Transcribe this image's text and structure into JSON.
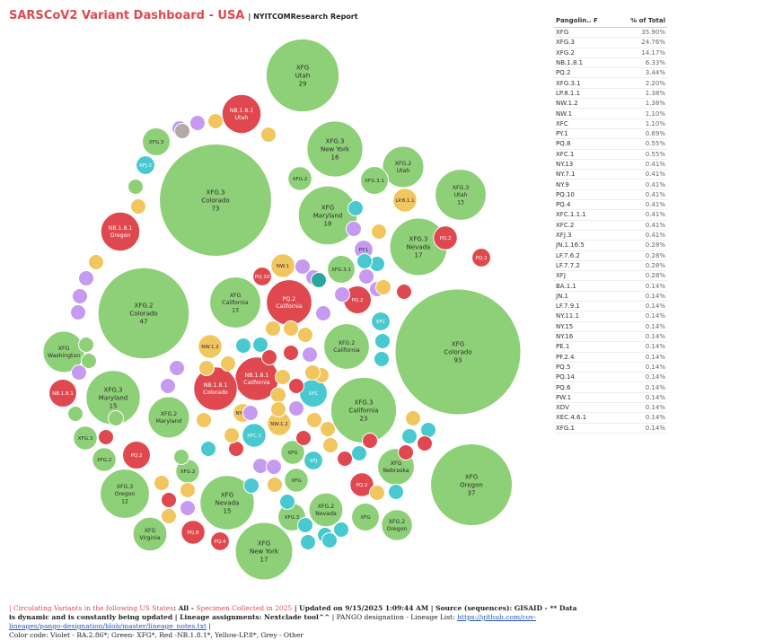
{
  "header": {
    "title": "SARSCoV2 Variant Dashboard - USA",
    "subtitle": "| NYITCOMResearch Report"
  },
  "colors": {
    "violet": "#c69af0",
    "green": "#8ed077",
    "red": "#e0484f",
    "yellow": "#f2c65f",
    "grey": "#b5a9a4",
    "cyan": "#48c9cf",
    "teal": "#2aa79b"
  },
  "table": {
    "col_lineage": "Pangolin.. F",
    "col_pct": "% of Total",
    "rows": [
      {
        "lineage": "XFG",
        "pct": "35.90%"
      },
      {
        "lineage": "XFG.3",
        "pct": "24.76%"
      },
      {
        "lineage": "XFG.2",
        "pct": "14.17%"
      },
      {
        "lineage": "NB.1.8.1",
        "pct": "6.33%"
      },
      {
        "lineage": "PQ.2",
        "pct": "3.44%"
      },
      {
        "lineage": "XFG.3.1",
        "pct": "2.20%"
      },
      {
        "lineage": "LP.8.1.1",
        "pct": "1.38%"
      },
      {
        "lineage": "NW.1.2",
        "pct": "1.38%"
      },
      {
        "lineage": "NW.1",
        "pct": "1.10%"
      },
      {
        "lineage": "XFC",
        "pct": "1.10%"
      },
      {
        "lineage": "PY.1",
        "pct": "0.69%"
      },
      {
        "lineage": "PQ.8",
        "pct": "0.55%"
      },
      {
        "lineage": "XFC.1",
        "pct": "0.55%"
      },
      {
        "lineage": "NY.13",
        "pct": "0.41%"
      },
      {
        "lineage": "NY.7.1",
        "pct": "0.41%"
      },
      {
        "lineage": "NY.9",
        "pct": "0.41%"
      },
      {
        "lineage": "PQ.10",
        "pct": "0.41%"
      },
      {
        "lineage": "PQ.4",
        "pct": "0.41%"
      },
      {
        "lineage": "XFC.1.1.1",
        "pct": "0.41%"
      },
      {
        "lineage": "XFC.2",
        "pct": "0.41%"
      },
      {
        "lineage": "XFJ.3",
        "pct": "0.41%"
      },
      {
        "lineage": "JN.1.16.5",
        "pct": "0.28%"
      },
      {
        "lineage": "LF.7.6.2",
        "pct": "0.28%"
      },
      {
        "lineage": "LF.7.7.2",
        "pct": "0.28%"
      },
      {
        "lineage": "XFJ",
        "pct": "0.28%"
      },
      {
        "lineage": "BA.1.1",
        "pct": "0.14%"
      },
      {
        "lineage": "JN.1",
        "pct": "0.14%"
      },
      {
        "lineage": "LF.7.9.1",
        "pct": "0.14%"
      },
      {
        "lineage": "NY.11.1",
        "pct": "0.14%"
      },
      {
        "lineage": "NY.15",
        "pct": "0.14%"
      },
      {
        "lineage": "NY.16",
        "pct": "0.14%"
      },
      {
        "lineage": "PE.1",
        "pct": "0.14%"
      },
      {
        "lineage": "PF.2.4",
        "pct": "0.14%"
      },
      {
        "lineage": "PQ.5",
        "pct": "0.14%"
      },
      {
        "lineage": "PQ.14",
        "pct": "0.14%"
      },
      {
        "lineage": "PQ.6",
        "pct": "0.14%"
      },
      {
        "lineage": "PW.1",
        "pct": "0.14%"
      },
      {
        "lineage": "XDV",
        "pct": "0.14%"
      },
      {
        "lineage": "XEC.4.6.1",
        "pct": "0.14%"
      },
      {
        "lineage": "XFG.1",
        "pct": "0.14%"
      }
    ]
  },
  "chart_data": {
    "type": "bubble",
    "title": "SARSCoV2 Variant Dashboard - USA",
    "color_legend": "Color code: Violet - BA.2.86*; Green- XFG*, Red -NB.1.8.1*, Yellow-LP.8*, Grey - Other",
    "bubbles": [
      {
        "lineage": "XFG",
        "state": "Colorado",
        "count": "93",
        "value": 93,
        "color": "green"
      },
      {
        "lineage": "XFG.3",
        "state": "Colorado",
        "count": "73",
        "value": 73,
        "color": "green"
      },
      {
        "lineage": "XFG.2",
        "state": "Colorado",
        "count": "47",
        "value": 47,
        "color": "green"
      },
      {
        "lineage": "XFG",
        "state": "Oregon",
        "count": "37",
        "value": 37,
        "color": "green"
      },
      {
        "lineage": "XFG",
        "state": "Utah",
        "count": "29",
        "value": 29,
        "color": "green"
      },
      {
        "lineage": "XFG.3",
        "state": "California",
        "count": "23",
        "value": 23,
        "color": "green"
      },
      {
        "lineage": "XFG",
        "state": "Maryland",
        "count": "18",
        "value": 18,
        "color": "green"
      },
      {
        "lineage": "XFG.3",
        "state": "Nevada",
        "count": "17",
        "value": 17,
        "color": "green"
      },
      {
        "lineage": "XFG",
        "state": "New York",
        "count": "17",
        "value": 17,
        "color": "green"
      },
      {
        "lineage": "XFG.3",
        "state": "New York",
        "count": "16",
        "value": 16,
        "color": "green"
      },
      {
        "lineage": "XFG.3",
        "state": "Maryland",
        "count": "15",
        "value": 15,
        "color": "green"
      },
      {
        "lineage": "XFG",
        "state": "Nevada",
        "count": "15",
        "value": 15,
        "color": "green"
      },
      {
        "lineage": "XFG",
        "state": "California",
        "count": "13",
        "value": 13,
        "color": "green"
      },
      {
        "lineage": "XFG.3",
        "state": "Utah",
        "count": "13",
        "value": 13,
        "color": "green"
      },
      {
        "lineage": "XFG.3",
        "state": "Oregon",
        "count": "12",
        "value": 12,
        "color": "green"
      },
      {
        "lineage": "XFG.2",
        "state": "California",
        "count": "",
        "value": 10,
        "color": "green"
      },
      {
        "lineage": "XFG.2",
        "state": "Utah",
        "count": "",
        "value": 8,
        "color": "green"
      },
      {
        "lineage": "XFG",
        "state": "Washington",
        "count": "",
        "value": 8,
        "color": "green"
      },
      {
        "lineage": "XFG.2",
        "state": "Maryland",
        "count": "",
        "value": 8,
        "color": "green"
      },
      {
        "lineage": "XFG",
        "state": "Nebraska",
        "count": "",
        "value": 6,
        "color": "green"
      },
      {
        "lineage": "XFG.2",
        "state": "Nevada",
        "count": "",
        "value": 5,
        "color": "green"
      },
      {
        "lineage": "XFG",
        "state": "Virginia",
        "count": "",
        "value": 5,
        "color": "green"
      },
      {
        "lineage": "XFG.2",
        "state": "Oregon",
        "count": "",
        "value": 4,
        "color": "green"
      },
      {
        "lineage": "XFG.3",
        "state": "",
        "count": "",
        "value": 3,
        "color": "green"
      },
      {
        "lineage": "XFG.3",
        "state": "",
        "count": "",
        "value": 2,
        "color": "green"
      },
      {
        "lineage": "XFG.2",
        "state": "",
        "count": "",
        "value": 2,
        "color": "green"
      },
      {
        "lineage": "XFG.2",
        "state": "",
        "count": "",
        "value": 2,
        "color": "green"
      },
      {
        "lineage": "XFG.2",
        "state": "",
        "count": "",
        "value": 2,
        "color": "green"
      },
      {
        "lineage": "XFG",
        "state": "",
        "count": "",
        "value": 3,
        "color": "green"
      },
      {
        "lineage": "XFG",
        "state": "",
        "count": "",
        "value": 2,
        "color": "green"
      },
      {
        "lineage": "XFG",
        "state": "",
        "count": "",
        "value": 2,
        "color": "green"
      },
      {
        "lineage": "XFG.3.1",
        "state": "",
        "count": "",
        "value": 3,
        "color": "green"
      },
      {
        "lineage": "XFG.3.1",
        "state": "",
        "count": "",
        "value": 3,
        "color": "green"
      },
      {
        "lineage": "XFG.3",
        "state": "",
        "count": "",
        "value": 3,
        "color": "green"
      },
      {
        "lineage": "NB.1.8.1",
        "state": "California",
        "count": "",
        "value": 9,
        "color": "red"
      },
      {
        "lineage": "NB.1.8.1",
        "state": "Colorado",
        "count": "",
        "value": 9,
        "color": "red"
      },
      {
        "lineage": "PQ.2",
        "state": "California",
        "count": "",
        "value": 10,
        "color": "red"
      },
      {
        "lineage": "NB.1.8.1",
        "state": "Oregon",
        "count": "",
        "value": 7,
        "color": "red"
      },
      {
        "lineage": "NB.1.8.1",
        "state": "Utah",
        "count": "",
        "value": 7,
        "color": "red"
      },
      {
        "lineage": "NB.1.8.1",
        "state": "",
        "count": "",
        "value": 3,
        "color": "red"
      },
      {
        "lineage": "PQ.2",
        "state": "",
        "count": "",
        "value": 3,
        "color": "red"
      },
      {
        "lineage": "PQ.2",
        "state": "",
        "count": "",
        "value": 3,
        "color": "red"
      },
      {
        "lineage": "PQ.2",
        "state": "",
        "count": "",
        "value": 2,
        "color": "red"
      },
      {
        "lineage": "PQ.2",
        "state": "",
        "count": "",
        "value": 2,
        "color": "red"
      },
      {
        "lineage": "PQ.2",
        "state": "",
        "count": "",
        "value": 1,
        "color": "red"
      },
      {
        "lineage": "PQ.8",
        "state": "",
        "count": "",
        "value": 2,
        "color": "red"
      },
      {
        "lineage": "PQ.4",
        "state": "",
        "count": "",
        "value": 1,
        "color": "red"
      },
      {
        "lineage": "PQ.10",
        "state": "",
        "count": "",
        "value": 1,
        "color": "red"
      },
      {
        "lineage": "NW.1",
        "state": "",
        "count": "",
        "value": 2,
        "color": "yellow"
      },
      {
        "lineage": "NW.1.2",
        "state": "",
        "count": "",
        "value": 2,
        "color": "yellow"
      },
      {
        "lineage": "NW.1.2",
        "state": "",
        "count": "",
        "value": 2,
        "color": "yellow"
      },
      {
        "lineage": "LP.8.1.1",
        "state": "",
        "count": "",
        "value": 2,
        "color": "yellow"
      },
      {
        "lineage": "NY.13",
        "state": "",
        "count": "",
        "value": 1,
        "color": "yellow"
      },
      {
        "lineage": "XFC",
        "state": "",
        "count": "",
        "value": 3,
        "color": "cyan"
      },
      {
        "lineage": "XFC",
        "state": "",
        "count": "",
        "value": 1,
        "color": "cyan"
      },
      {
        "lineage": "XFC.1",
        "state": "",
        "count": "",
        "value": 2,
        "color": "cyan"
      },
      {
        "lineage": "XFJ",
        "state": "",
        "count": "",
        "value": 1,
        "color": "cyan"
      },
      {
        "lineage": "XFJ.3",
        "state": "",
        "count": "",
        "value": 1,
        "color": "cyan"
      },
      {
        "lineage": "PY.1",
        "state": "",
        "count": "",
        "value": 1,
        "color": "violet"
      }
    ]
  },
  "footer": {
    "part1": "| Circulating Variants in the following US States",
    "part2": ": All - ",
    "part3": "Specimen Collected in 2025",
    "part4": " | Updated on 9/15/2025 1:09:44 AM | ",
    "part5": "Source (sequences): GISAID - ** Data is dynamic and is constantly being updated | Lineage assignments: Nextclade tool^^",
    "part6": " | PANGO designation - Lineage List: ",
    "link": "https://github.com/cov-lineages/pango-designation/blob/master/lineage_notes.txt",
    "part7": " |",
    "part8": "Color code: Violet - BA.2.86*; Green- XFG*, Red -NB.1.8.1*, Yellow-LP.8*, Grey - Other"
  }
}
